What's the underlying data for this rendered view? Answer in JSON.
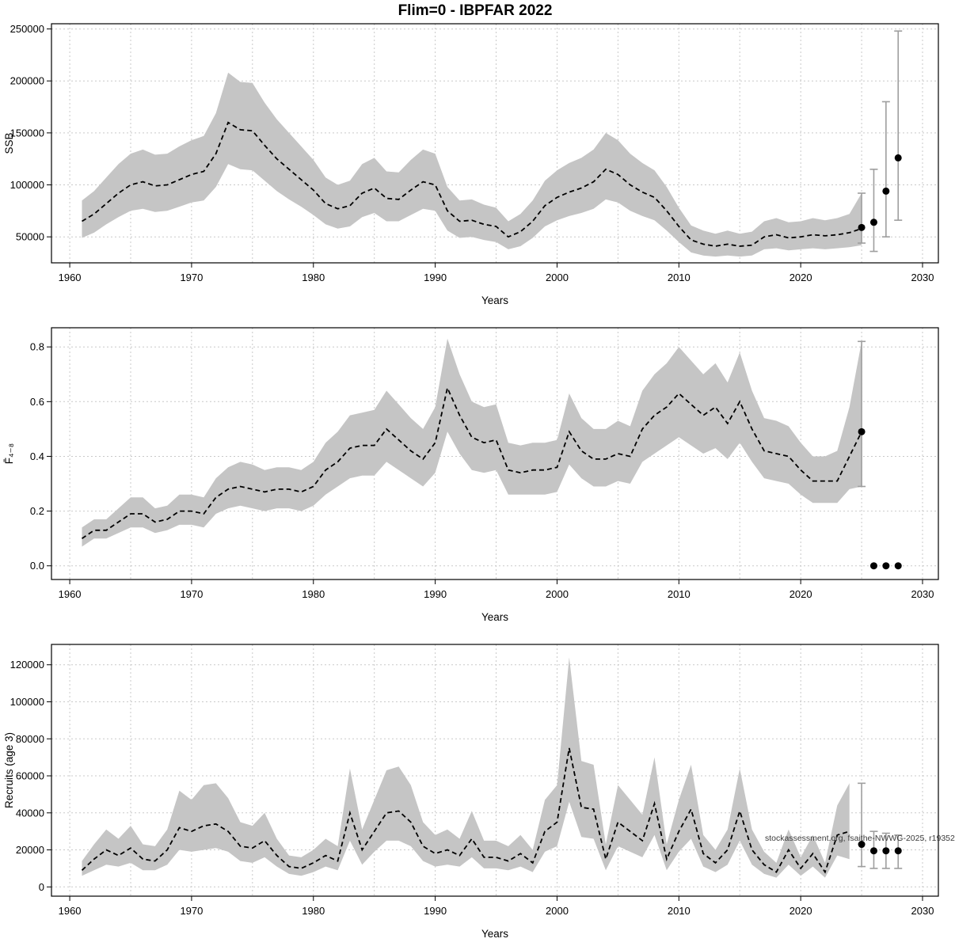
{
  "title": "Flim=0 - IBPFAR 2022",
  "watermark": "stockassessment.org, fsaithe-NWWG-2025, r19352",
  "colors": {
    "band": "#c5c5c5",
    "line": "#000000",
    "dot": "#000000",
    "errorbar": "#9e9e9e",
    "grid": "#c9c9c9",
    "border": "#000000"
  },
  "chart_data": [
    {
      "type": "line",
      "name": "ssb",
      "title": "Flim=0 - IBPFAR 2022",
      "xlabel": "Years",
      "ylabel": "SSB",
      "legend": "none",
      "grid": true,
      "xlim": [
        1958.5,
        2031.3
      ],
      "ylim": [
        25000,
        255000
      ],
      "xticks": [
        1960,
        1970,
        1980,
        1990,
        2000,
        2010,
        2020,
        2030
      ],
      "yticks": [
        50000,
        100000,
        150000,
        200000,
        250000
      ],
      "years": [
        1961,
        1962,
        1963,
        1964,
        1965,
        1966,
        1967,
        1968,
        1969,
        1970,
        1971,
        1972,
        1973,
        1974,
        1975,
        1976,
        1977,
        1978,
        1979,
        1980,
        1981,
        1982,
        1983,
        1984,
        1985,
        1986,
        1987,
        1988,
        1989,
        1990,
        1991,
        1992,
        1993,
        1994,
        1995,
        1996,
        1997,
        1998,
        1999,
        2000,
        2001,
        2002,
        2003,
        2004,
        2005,
        2006,
        2007,
        2008,
        2009,
        2010,
        2011,
        2012,
        2013,
        2014,
        2015,
        2016,
        2017,
        2018,
        2019,
        2020,
        2021,
        2022,
        2023,
        2024,
        2025
      ],
      "values": [
        65000,
        72000,
        82000,
        92000,
        100000,
        103000,
        99000,
        100000,
        105000,
        110000,
        113000,
        130000,
        160000,
        153000,
        152000,
        138000,
        125000,
        115000,
        105000,
        95000,
        82000,
        77000,
        80000,
        92000,
        97000,
        87000,
        86000,
        95000,
        103000,
        100000,
        75000,
        65000,
        66000,
        62000,
        60000,
        50000,
        55000,
        65000,
        80000,
        88000,
        93000,
        97000,
        103000,
        115000,
        110000,
        100000,
        93000,
        88000,
        75000,
        60000,
        47000,
        43000,
        41000,
        43000,
        41000,
        42000,
        50000,
        52000,
        49000,
        50000,
        52000,
        51000,
        52000,
        54000,
        58000
      ],
      "lo": [
        49000,
        54000,
        62000,
        69000,
        75000,
        77000,
        74000,
        75000,
        79000,
        83000,
        85000,
        98000,
        120000,
        115000,
        114000,
        104000,
        94000,
        86000,
        79000,
        71000,
        62000,
        58000,
        60000,
        69000,
        73000,
        65000,
        65000,
        71000,
        77000,
        75000,
        56000,
        49000,
        50000,
        47000,
        45000,
        38000,
        41000,
        49000,
        60000,
        66000,
        70000,
        73000,
        77000,
        86000,
        83000,
        75000,
        70000,
        66000,
        56000,
        45000,
        35000,
        32000,
        31000,
        32000,
        31000,
        32000,
        38000,
        39000,
        37000,
        38000,
        39000,
        38000,
        39000,
        40000,
        42000
      ],
      "hi": [
        85000,
        94000,
        107000,
        120000,
        130000,
        134000,
        129000,
        130000,
        137000,
        143000,
        147000,
        169000,
        208000,
        199000,
        198000,
        179000,
        163000,
        150000,
        137000,
        124000,
        107000,
        100000,
        104000,
        120000,
        126000,
        113000,
        112000,
        124000,
        134000,
        130000,
        98000,
        85000,
        86000,
        81000,
        78000,
        65000,
        72000,
        85000,
        104000,
        114000,
        121000,
        126000,
        134000,
        150000,
        143000,
        130000,
        121000,
        114000,
        98000,
        78000,
        61000,
        56000,
        53000,
        56000,
        53000,
        55000,
        65000,
        68000,
        64000,
        65000,
        68000,
        66000,
        68000,
        72000,
        92000
      ],
      "forecast": {
        "years": [
          2025,
          2026,
          2027,
          2028
        ],
        "values": [
          59000,
          64000,
          94000,
          126000
        ],
        "lo": [
          44000,
          36000,
          50000,
          66000
        ],
        "hi": [
          92000,
          115000,
          180000,
          248000
        ]
      }
    },
    {
      "type": "line",
      "name": "fbar",
      "title": "",
      "xlabel": "Years",
      "ylabel": "F̄₄₋₈",
      "legend": "none",
      "grid": true,
      "xlim": [
        1958.5,
        2031.3
      ],
      "ylim": [
        -0.05,
        0.87
      ],
      "xticks": [
        1960,
        1970,
        1980,
        1990,
        2000,
        2010,
        2020,
        2030
      ],
      "yticks": [
        0,
        0.2,
        0.4,
        0.6,
        0.8
      ],
      "ytick_labels": [
        "0.0",
        "0.2",
        "0.4",
        "0.6",
        "0.8"
      ],
      "years": [
        1961,
        1962,
        1963,
        1964,
        1965,
        1966,
        1967,
        1968,
        1969,
        1970,
        1971,
        1972,
        1973,
        1974,
        1975,
        1976,
        1977,
        1978,
        1979,
        1980,
        1981,
        1982,
        1983,
        1984,
        1985,
        1986,
        1987,
        1988,
        1989,
        1990,
        1991,
        1992,
        1993,
        1994,
        1995,
        1996,
        1997,
        1998,
        1999,
        2000,
        2001,
        2002,
        2003,
        2004,
        2005,
        2006,
        2007,
        2008,
        2009,
        2010,
        2011,
        2012,
        2013,
        2014,
        2015,
        2016,
        2017,
        2018,
        2019,
        2020,
        2021,
        2022,
        2023,
        2024,
        2025
      ],
      "values": [
        0.1,
        0.13,
        0.13,
        0.16,
        0.19,
        0.19,
        0.16,
        0.17,
        0.2,
        0.2,
        0.19,
        0.25,
        0.28,
        0.29,
        0.28,
        0.27,
        0.28,
        0.28,
        0.27,
        0.29,
        0.35,
        0.38,
        0.43,
        0.44,
        0.44,
        0.5,
        0.46,
        0.42,
        0.39,
        0.45,
        0.65,
        0.55,
        0.47,
        0.45,
        0.46,
        0.35,
        0.34,
        0.35,
        0.35,
        0.36,
        0.49,
        0.42,
        0.39,
        0.39,
        0.41,
        0.4,
        0.5,
        0.55,
        0.58,
        0.63,
        0.59,
        0.55,
        0.58,
        0.52,
        0.6,
        0.5,
        0.42,
        0.41,
        0.4,
        0.35,
        0.31,
        0.31,
        0.31,
        0.4,
        0.49
      ],
      "lo": [
        0.07,
        0.1,
        0.1,
        0.12,
        0.14,
        0.14,
        0.12,
        0.13,
        0.15,
        0.15,
        0.14,
        0.19,
        0.21,
        0.22,
        0.21,
        0.2,
        0.21,
        0.21,
        0.2,
        0.22,
        0.26,
        0.29,
        0.32,
        0.33,
        0.33,
        0.38,
        0.35,
        0.32,
        0.29,
        0.34,
        0.49,
        0.41,
        0.35,
        0.34,
        0.35,
        0.26,
        0.26,
        0.26,
        0.26,
        0.27,
        0.37,
        0.32,
        0.29,
        0.29,
        0.31,
        0.3,
        0.38,
        0.41,
        0.44,
        0.47,
        0.44,
        0.41,
        0.43,
        0.39,
        0.45,
        0.38,
        0.32,
        0.31,
        0.3,
        0.26,
        0.23,
        0.23,
        0.23,
        0.28,
        0.29
      ],
      "hi": [
        0.14,
        0.17,
        0.17,
        0.21,
        0.25,
        0.25,
        0.21,
        0.22,
        0.26,
        0.26,
        0.25,
        0.32,
        0.36,
        0.38,
        0.37,
        0.35,
        0.36,
        0.36,
        0.35,
        0.38,
        0.45,
        0.49,
        0.55,
        0.56,
        0.57,
        0.64,
        0.59,
        0.54,
        0.5,
        0.58,
        0.83,
        0.7,
        0.6,
        0.58,
        0.59,
        0.45,
        0.44,
        0.45,
        0.45,
        0.46,
        0.63,
        0.54,
        0.5,
        0.5,
        0.53,
        0.51,
        0.64,
        0.7,
        0.74,
        0.8,
        0.75,
        0.7,
        0.74,
        0.67,
        0.78,
        0.64,
        0.54,
        0.53,
        0.51,
        0.45,
        0.4,
        0.4,
        0.42,
        0.58,
        0.82
      ],
      "forecast": {
        "years": [
          2025,
          2026,
          2027,
          2028
        ],
        "values": [
          0.49,
          0.0,
          0.0,
          0.0
        ],
        "lo": [
          0.29,
          null,
          null,
          null
        ],
        "hi": [
          0.82,
          null,
          null,
          null
        ]
      }
    },
    {
      "type": "line",
      "name": "recruits",
      "title": "",
      "xlabel": "Years",
      "ylabel": "Recruits (age 3)",
      "legend": "none",
      "grid": true,
      "xlim": [
        1958.5,
        2031.3
      ],
      "ylim": [
        -5000,
        131000
      ],
      "xticks": [
        1960,
        1970,
        1980,
        1990,
        2000,
        2010,
        2020,
        2030
      ],
      "yticks": [
        0,
        20000,
        40000,
        60000,
        80000,
        100000,
        120000
      ],
      "years": [
        1961,
        1962,
        1963,
        1964,
        1965,
        1966,
        1967,
        1968,
        1969,
        1970,
        1971,
        1972,
        1973,
        1974,
        1975,
        1976,
        1977,
        1978,
        1979,
        1980,
        1981,
        1982,
        1983,
        1984,
        1985,
        1986,
        1987,
        1988,
        1989,
        1990,
        1991,
        1992,
        1993,
        1994,
        1995,
        1996,
        1997,
        1998,
        1999,
        2000,
        2001,
        2002,
        2003,
        2004,
        2005,
        2006,
        2007,
        2008,
        2009,
        2010,
        2011,
        2012,
        2013,
        2014,
        2015,
        2016,
        2017,
        2018,
        2019,
        2020,
        2021,
        2022,
        2023,
        2024
      ],
      "values": [
        9000,
        15000,
        20000,
        17000,
        21000,
        15000,
        14000,
        20000,
        32000,
        30000,
        33000,
        34000,
        30000,
        22000,
        21000,
        25000,
        17000,
        11000,
        10000,
        13000,
        17000,
        14000,
        40000,
        20000,
        30000,
        40000,
        41000,
        35000,
        22000,
        18000,
        20000,
        17000,
        26000,
        16000,
        16000,
        14000,
        18000,
        13000,
        30000,
        35000,
        75000,
        43000,
        42000,
        15000,
        35000,
        30000,
        25000,
        45000,
        15000,
        30000,
        42000,
        18000,
        13000,
        20000,
        41000,
        20000,
        12000,
        8000,
        20000,
        10000,
        18000,
        8000,
        28000,
        30000
      ],
      "lo": [
        6000,
        9000,
        12000,
        11000,
        13000,
        9000,
        9000,
        12000,
        20000,
        19000,
        20000,
        21000,
        19000,
        14000,
        13000,
        16000,
        11000,
        7000,
        6000,
        8000,
        11000,
        9000,
        25000,
        12000,
        19000,
        25000,
        25000,
        22000,
        14000,
        11000,
        12000,
        11000,
        16000,
        10000,
        10000,
        9000,
        11000,
        8000,
        19000,
        22000,
        46000,
        27000,
        26000,
        9000,
        22000,
        19000,
        16000,
        28000,
        9000,
        19000,
        26000,
        11000,
        8000,
        12000,
        25000,
        12000,
        7000,
        5000,
        12000,
        6000,
        11000,
        5000,
        17000,
        15000
      ],
      "hi": [
        14000,
        23000,
        31000,
        26000,
        33000,
        23000,
        22000,
        31000,
        52000,
        47000,
        55000,
        56000,
        48000,
        35000,
        33000,
        40000,
        26000,
        17000,
        16000,
        20000,
        26000,
        22000,
        64000,
        31000,
        47000,
        63000,
        65000,
        55000,
        35000,
        28000,
        31000,
        26000,
        41000,
        25000,
        25000,
        22000,
        28000,
        20000,
        47000,
        55000,
        124000,
        68000,
        66000,
        23000,
        55000,
        47000,
        39000,
        70000,
        23000,
        47000,
        66000,
        28000,
        20000,
        31000,
        64000,
        31000,
        19000,
        13000,
        31000,
        16000,
        28000,
        13000,
        44000,
        56000
      ],
      "forecast": {
        "years": [
          2025,
          2026,
          2027,
          2028
        ],
        "values": [
          23000,
          19500,
          19500,
          19500
        ],
        "lo": [
          11000,
          10000,
          10000,
          10000
        ],
        "hi": [
          56000,
          30000,
          29000,
          28000
        ]
      }
    }
  ]
}
